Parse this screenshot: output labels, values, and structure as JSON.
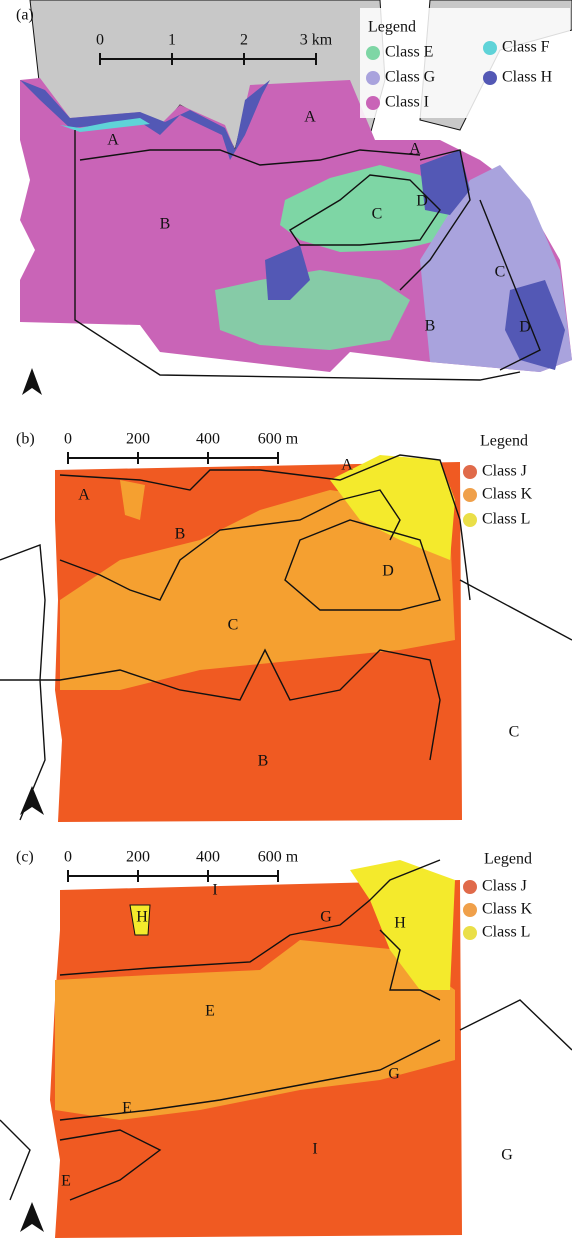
{
  "panels": [
    {
      "label": "(a)",
      "scale_labels": [
        "0",
        "1",
        "2",
        "3 km"
      ],
      "legend": {
        "title": "Legend",
        "items": [
          {
            "label": "Class E",
            "color": "#7ed6a5"
          },
          {
            "label": "Class F",
            "color": "#5fd3d8"
          },
          {
            "label": "Class G",
            "color": "#a9a3dd"
          },
          {
            "label": "Class H",
            "color": "#5358b5"
          },
          {
            "label": "Class I",
            "color": "#c964b7"
          }
        ]
      },
      "regions": [
        "A",
        "A",
        "A",
        "B",
        "C",
        "D",
        "C",
        "B",
        "D"
      ]
    },
    {
      "label": "(b)",
      "scale_labels": [
        "0",
        "200",
        "400",
        "600 m"
      ],
      "legend": {
        "title": "Legend",
        "items": [
          {
            "label": "Class J",
            "color": "#e06a4a"
          },
          {
            "label": "Class K",
            "color": "#f0a04a"
          },
          {
            "label": "Class L",
            "color": "#eadf48"
          }
        ]
      },
      "regions": [
        "A",
        "A",
        "B",
        "C",
        "D",
        "B",
        "C"
      ]
    },
    {
      "label": "(c)",
      "scale_labels": [
        "0",
        "200",
        "400",
        "600 m"
      ],
      "legend": {
        "title": "Legend",
        "items": [
          {
            "label": "Class J",
            "color": "#e06a4a"
          },
          {
            "label": "Class K",
            "color": "#f0a04a"
          },
          {
            "label": "Class L",
            "color": "#eadf48"
          }
        ]
      },
      "regions": [
        "H",
        "I",
        "G",
        "H",
        "E",
        "G",
        "E",
        "E",
        "I",
        "G"
      ]
    }
  ]
}
